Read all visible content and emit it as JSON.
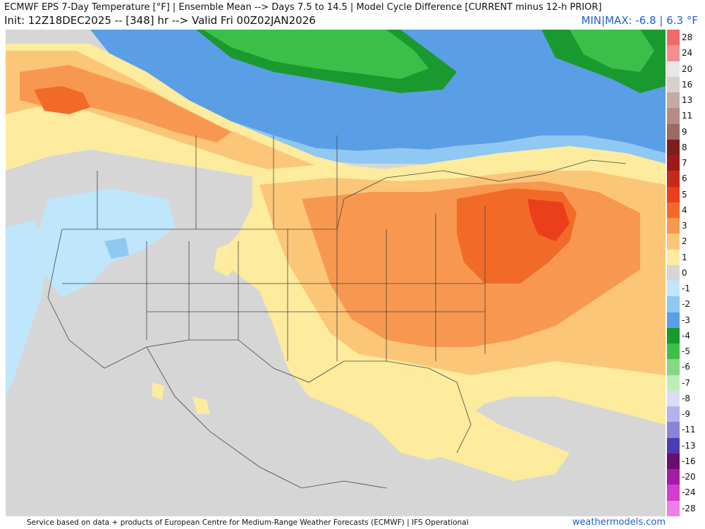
{
  "header": {
    "title": "ECMWF EPS 7-Day Temperature [°F] | Ensemble Mean --> Days 7.5 to 14.5 | Model Cycle Difference [CURRENT minus 12-h PRIOR]",
    "init_line": "Init: 12Z18DEC2025 -- [348] hr --> Valid Fri 00Z02JAN2026",
    "minmax": "MIN|MAX: -6.8 | 6.3 °F"
  },
  "colorbar": {
    "entries": [
      {
        "label": "28",
        "color": "#f06a6a"
      },
      {
        "label": "24",
        "color": "#f58e8e"
      },
      {
        "label": "20",
        "color": "#e8e8e8"
      },
      {
        "label": "16",
        "color": "#d8cfcf"
      },
      {
        "label": "13",
        "color": "#c4aaa6"
      },
      {
        "label": "11",
        "color": "#b48c86"
      },
      {
        "label": "9",
        "color": "#9c6a62"
      },
      {
        "label": "8",
        "color": "#7a1e1e"
      },
      {
        "label": "7",
        "color": "#9c1a1a"
      },
      {
        "label": "6",
        "color": "#c82a1a"
      },
      {
        "label": "5",
        "color": "#ea3f1a"
      },
      {
        "label": "4",
        "color": "#f26a28"
      },
      {
        "label": "3",
        "color": "#f89850"
      },
      {
        "label": "2",
        "color": "#fcc678"
      },
      {
        "label": "1",
        "color": "#fdeb9e"
      },
      {
        "label": "0",
        "color": "#d6d6d6"
      },
      {
        "label": "-1",
        "color": "#bfe6fa"
      },
      {
        "label": "-2",
        "color": "#8fc8f2"
      },
      {
        "label": "-3",
        "color": "#5a9ee6"
      },
      {
        "label": "-4",
        "color": "#1a9a2e"
      },
      {
        "label": "-5",
        "color": "#3cbf48"
      },
      {
        "label": "-6",
        "color": "#84d982"
      },
      {
        "label": "-7",
        "color": "#bdeeb8"
      },
      {
        "label": "-8",
        "color": "#dcdcf6"
      },
      {
        "label": "-9",
        "color": "#b4b2ea"
      },
      {
        "label": "-11",
        "color": "#8a84d6"
      },
      {
        "label": "-13",
        "color": "#4b3cb4"
      },
      {
        "label": "-16",
        "color": "#6a0d6e"
      },
      {
        "label": "-20",
        "color": "#a41ca6"
      },
      {
        "label": "-24",
        "color": "#d23ccf"
      },
      {
        "label": "-28",
        "color": "#ef7fe8"
      }
    ]
  },
  "footer": {
    "credit": "Service based on data + products of European Centre for Medium-Range Weather Forecasts (ECMWF) | IFS Operational",
    "brand": "weathermodels.com"
  }
}
